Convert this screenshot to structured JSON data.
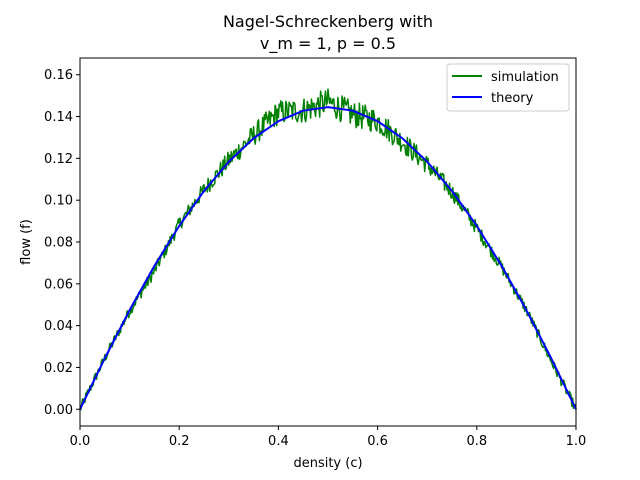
{
  "chart_data": {
    "type": "line",
    "title": "Nagel-Schreckenberg with\nv_m = 1, p = 0.5",
    "title_lines": [
      "Nagel-Schreckenberg with",
      "v_m = 1, p = 0.5"
    ],
    "xlabel": "density (c)",
    "ylabel": "flow (f)",
    "xlim": [
      0.0,
      1.0
    ],
    "ylim": [
      -0.008,
      0.168
    ],
    "xticks": [
      0.0,
      0.2,
      0.4,
      0.6,
      0.8,
      1.0
    ],
    "xtick_labels": [
      "0.0",
      "0.2",
      "0.4",
      "0.6",
      "0.8",
      "1.0"
    ],
    "yticks": [
      0.0,
      0.02,
      0.04,
      0.06,
      0.08,
      0.1,
      0.12,
      0.14,
      0.16
    ],
    "ytick_labels": [
      "0.00",
      "0.02",
      "0.04",
      "0.06",
      "0.08",
      "0.10",
      "0.12",
      "0.14",
      "0.16"
    ],
    "grid": false,
    "legend_position": "top-right",
    "series": [
      {
        "name": "simulation",
        "color": "#008000",
        "x": [
          0.0,
          0.05,
          0.1,
          0.15,
          0.2,
          0.25,
          0.3,
          0.35,
          0.4,
          0.45,
          0.5,
          0.55,
          0.6,
          0.65,
          0.7,
          0.75,
          0.8,
          0.85,
          0.9,
          0.95,
          1.0
        ],
        "y": [
          0.0,
          0.0245,
          0.047,
          0.066,
          0.0885,
          0.105,
          0.119,
          0.131,
          0.142,
          0.143,
          0.147,
          0.141,
          0.138,
          0.128,
          0.117,
          0.104,
          0.0865,
          0.068,
          0.0475,
          0.023,
          0.0
        ],
        "noisy": true
      },
      {
        "name": "theory",
        "color": "#0000ff",
        "x": [
          0.0,
          0.05,
          0.1,
          0.15,
          0.2,
          0.25,
          0.3,
          0.35,
          0.4,
          0.45,
          0.5,
          0.55,
          0.6,
          0.65,
          0.7,
          0.75,
          0.8,
          0.85,
          0.9,
          0.95,
          1.0
        ],
        "y": [
          0.0,
          0.0244,
          0.0474,
          0.0686,
          0.0877,
          0.1044,
          0.1184,
          0.1296,
          0.1378,
          0.1428,
          0.1445,
          0.1428,
          0.1378,
          0.1296,
          0.1184,
          0.1044,
          0.0877,
          0.0686,
          0.0474,
          0.0244,
          0.0
        ]
      }
    ]
  }
}
